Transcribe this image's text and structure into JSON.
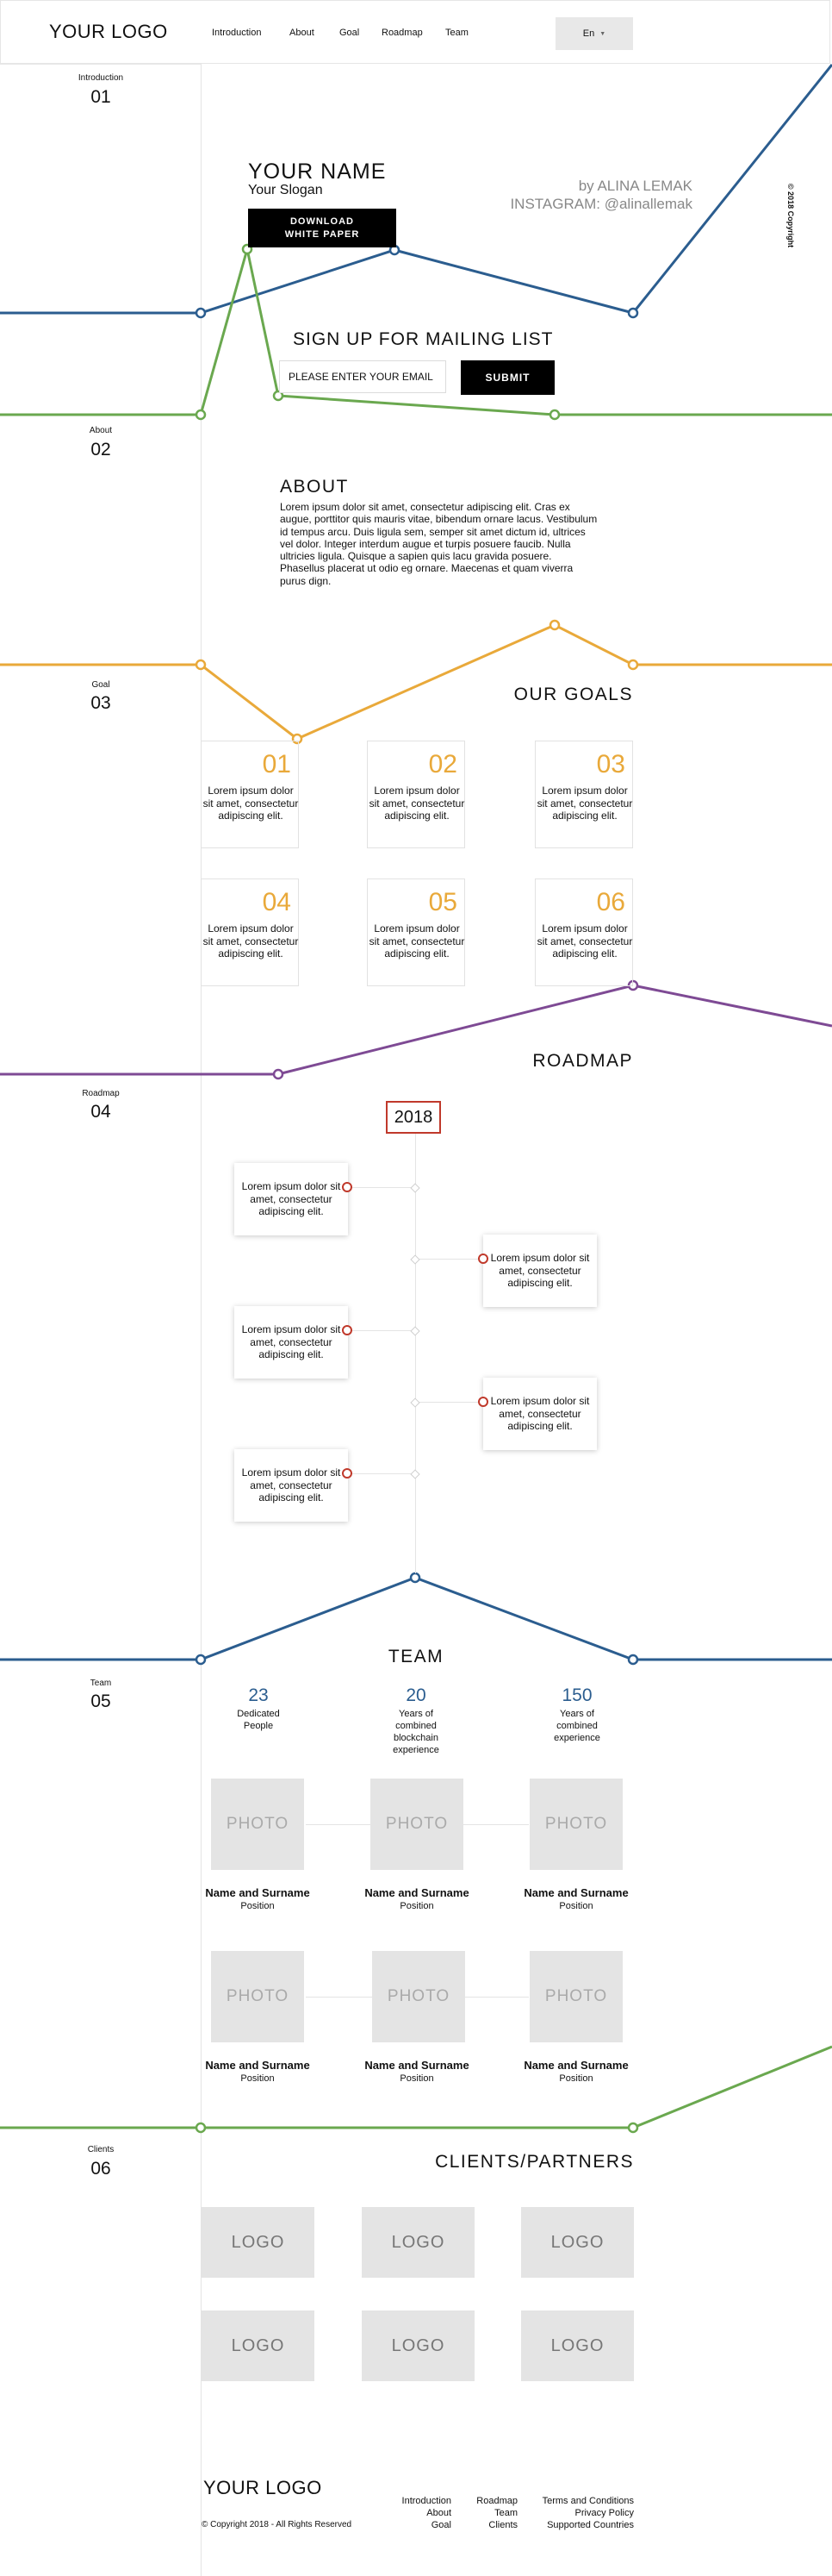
{
  "header": {
    "logo": "YOUR LOGO",
    "nav": [
      "Introduction",
      "About",
      "Goal",
      "Roadmap",
      "Team"
    ],
    "language": "En",
    "language_icon": "chevron-down-icon"
  },
  "sections": [
    {
      "label": "Introduction",
      "number": "01"
    },
    {
      "label": "About",
      "number": "02"
    },
    {
      "label": "Goal",
      "number": "03"
    },
    {
      "label": "Roadmap",
      "number": "04"
    },
    {
      "label": "Team",
      "number": "05"
    },
    {
      "label": "Clients",
      "number": "06"
    }
  ],
  "hero": {
    "name": "YOUR NAME",
    "slogan": "Your Slogan",
    "download_line1": "DOWNLOAD",
    "download_line2": "WHITE PAPER",
    "by_line": "by ALINA LEMAK",
    "instagram_line": "INSTAGRAM: @alinallemak",
    "copyright_vertical": "© 2018 Copyright"
  },
  "mailing": {
    "title": "SIGN UP FOR MAILING LIST",
    "email_placeholder": "PLEASE ENTER YOUR EMAIL",
    "submit_label": "SUBMIT"
  },
  "about": {
    "title": "ABOUT",
    "text": " Lorem ipsum dolor sit amet, consectetur adipiscing elit. Cras ex augue, porttitor quis mauris vitae, bibendum ornare lacus. Vestibulum id tempus arcu. Duis ligula sem, semper sit amet dictum id, ultrices vel dolor. Integer interdum augue et turpis posuere faucib. Nulla ultricies ligula. Quisque a sapien quis lacu gravida posuere. Phasellus placerat ut odio eg ornare. Maecenas et quam viverra purus dign."
  },
  "goals": {
    "title": "OUR GOALS",
    "items": [
      {
        "number": "01",
        "text": "Lorem ipsum dolor sit amet, consectetur adipiscing elit."
      },
      {
        "number": "02",
        "text": "Lorem ipsum dolor sit amet, consectetur adipiscing elit."
      },
      {
        "number": "03",
        "text": "Lorem ipsum dolor sit amet, consectetur adipiscing elit."
      },
      {
        "number": "04",
        "text": "Lorem ipsum dolor sit amet, consectetur adipiscing elit."
      },
      {
        "number": "05",
        "text": "Lorem ipsum dolor sit amet, consectetur adipiscing elit."
      },
      {
        "number": "06",
        "text": "Lorem ipsum dolor sit amet, consectetur adipiscing elit."
      }
    ]
  },
  "roadmap": {
    "title": "ROADMAP",
    "year": "2018",
    "items": [
      {
        "side": "left",
        "text": "Lorem ipsum dolor sit amet, consectetur adipiscing elit."
      },
      {
        "side": "right",
        "text": "Lorem ipsum dolor sit amet, consectetur adipiscing elit."
      },
      {
        "side": "left",
        "text": "Lorem ipsum dolor sit amet, consectetur adipiscing elit."
      },
      {
        "side": "right",
        "text": "Lorem ipsum dolor sit amet, consectetur adipiscing elit."
      },
      {
        "side": "left",
        "text": "Lorem ipsum dolor sit amet, consectetur adipiscing elit."
      }
    ]
  },
  "team": {
    "title": "TEAM",
    "stats": [
      {
        "value": "23",
        "label": "Dedicated People"
      },
      {
        "value": "20",
        "label": "Years of combined blockchain experience"
      },
      {
        "value": "150",
        "label": "Years of combined experience"
      }
    ],
    "photo_placeholder": "PHOTO",
    "members": [
      {
        "name": "Name and Surname",
        "position": "Position"
      },
      {
        "name": "Name and Surname",
        "position": "Position"
      },
      {
        "name": "Name and Surname",
        "position": "Position"
      },
      {
        "name": "Name and Surname",
        "position": "Position"
      },
      {
        "name": "Name and Surname",
        "position": "Position"
      },
      {
        "name": "Name and Surname",
        "position": "Position"
      }
    ]
  },
  "clients": {
    "title": "CLIENTS/PARTNERS",
    "logo_placeholder": "LOGO",
    "count": 6
  },
  "footer": {
    "logo": "YOUR LOGO",
    "copyright": "© Copyright 2018 - All Rights Reserved",
    "columns": [
      [
        "Introduction",
        "About",
        "Goal"
      ],
      [
        "Roadmap",
        "Team",
        "Clients"
      ],
      [
        "Terms and Conditions",
        "Privacy Policy",
        "Supported Countries"
      ]
    ]
  },
  "colors": {
    "blue": "#2b5d8f",
    "green": "#6aa84f",
    "orange": "#e9a93a",
    "purple": "#7e4a94",
    "red_accent": "#c0392b",
    "placeholder_gray": "#e4e4e4"
  }
}
